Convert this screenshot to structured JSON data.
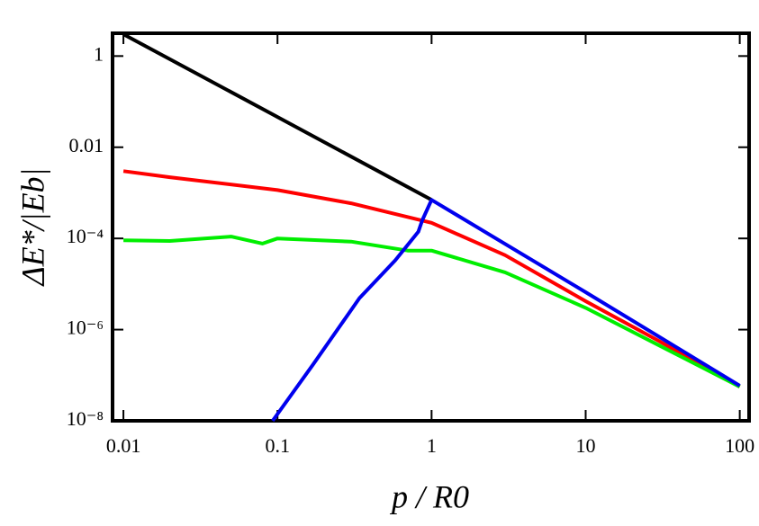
{
  "chart_data": {
    "type": "line",
    "x_label": "p / R0",
    "y_label": "ΔE*/|Eb|",
    "xscale": "log",
    "yscale": "log",
    "xlim": [
      0.0085,
      115
    ],
    "ylim": [
      1e-08,
      3.16
    ],
    "xticks": [
      0.01,
      0.1,
      1,
      10,
      100
    ],
    "yticks": [
      {
        "value": 1e-08,
        "label": "10⁻⁸"
      },
      {
        "value": 1e-06,
        "label": "10⁻⁶"
      },
      {
        "value": 0.0001,
        "label": "10⁻⁴"
      },
      0.01,
      1
    ],
    "series": [
      {
        "name": "black",
        "color": "#000000",
        "x": [
          0.01,
          0.1,
          1
        ],
        "values": [
          3,
          0.046,
          0.0007
        ]
      },
      {
        "name": "red",
        "color": "#ff0000",
        "x": [
          0.01,
          0.02,
          0.1,
          0.3,
          1,
          3,
          10,
          30,
          100
        ],
        "values": [
          0.003,
          0.0022,
          0.00115,
          0.00059,
          0.00022,
          4.3e-05,
          4.2e-06,
          5.6e-07,
          5.6e-08
        ]
      },
      {
        "name": "green",
        "color": "#00ee00",
        "x": [
          0.01,
          0.02,
          0.05,
          0.08,
          0.1,
          0.3,
          0.7,
          1,
          3,
          10,
          30,
          100
        ],
        "values": [
          9.1e-05,
          8.8e-05,
          0.00011,
          7.7e-05,
          0.0001,
          8.5e-05,
          5.4e-05,
          5.4e-05,
          1.8e-05,
          3e-06,
          4.5e-07,
          5.6e-08
        ]
      },
      {
        "name": "blue",
        "color": "#0000ee",
        "x": [
          0.093,
          0.17,
          0.34,
          0.58,
          0.82,
          0.87,
          1,
          10,
          100
        ],
        "values": [
          1e-08,
          1.7e-07,
          4.9e-06,
          3.3e-05,
          0.00014,
          0.00025,
          0.0007,
          6.6e-06,
          5.9e-08
        ]
      }
    ]
  }
}
